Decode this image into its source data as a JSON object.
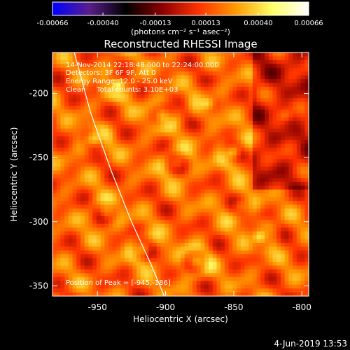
{
  "chart_data": {
    "type": "heatmap",
    "title": "Reconstructed RHESSI Image",
    "colorbar": {
      "ticks": [
        "-0.00066",
        "-0.00040",
        "-0.00013",
        "0.00013",
        "0.00040",
        "0.00066"
      ],
      "tick_values": [
        -0.00066,
        -0.0004,
        -0.00013,
        0.00013,
        0.0004,
        0.00066
      ],
      "range": [
        -0.00066,
        0.00066
      ],
      "unit_label": "(photons cm⁻² s⁻¹ asec⁻²)",
      "colormap": [
        "#0000ff",
        "#5a1e8c",
        "#000000",
        "#8b0000",
        "#ff3300",
        "#ff9900",
        "#ffff66",
        "#ffffff"
      ]
    },
    "xlabel": "Heliocentric X (arcsec)",
    "ylabel": "Heliocentric Y (arcsec)",
    "xlim": [
      -983,
      -795
    ],
    "ylim": [
      -358,
      -168
    ],
    "xticks": [
      -950,
      -900,
      -850,
      -800
    ],
    "xtick_labels": [
      "-950",
      "-900",
      "-850",
      "-800"
    ],
    "yticks": [
      -200,
      -250,
      -300,
      -350
    ],
    "ytick_labels": [
      "-200",
      "-250",
      "-300",
      "-350"
    ],
    "limb_curve": [
      [
        -967,
        -168
      ],
      [
        -955,
        -215
      ],
      [
        -940,
        -260
      ],
      [
        -925,
        -300
      ],
      [
        -910,
        -335
      ],
      [
        -901,
        -358
      ]
    ],
    "annotations": [
      "14-Nov-2014 22:18:48.000 to 22:24:00.000",
      "Detectors: 3F 6F 9F, Att 0",
      "Energy Range: 12.0 - 25.0 keV",
      "Clean     Total counts: 3.10E+03",
      "Position of Peak = [-945,-186]"
    ],
    "peak": [
      -945,
      -186
    ],
    "footer": "4-Jun-2019 13:53"
  }
}
